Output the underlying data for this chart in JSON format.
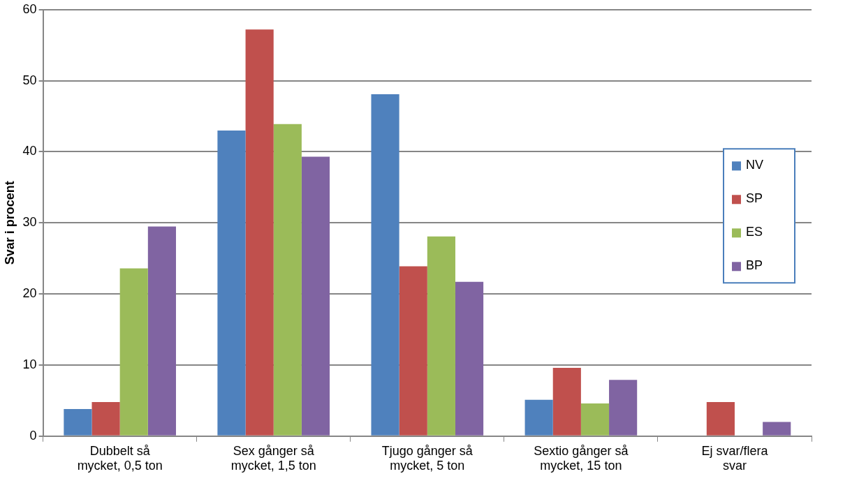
{
  "chart_data": {
    "type": "bar",
    "ylabel": "Svar i procent",
    "categories": [
      "Dubbelt så mycket, 0,5 ton",
      "Sex gånger så mycket, 1,5 ton",
      "Tjugo gånger så mycket, 5 ton",
      "Sextio gånger så mycket, 15 ton",
      "Ej svar/flera svar"
    ],
    "series": [
      {
        "name": "NV",
        "color": "#4f81bd",
        "values": [
          3.8,
          43.0,
          48.1,
          5.1,
          0
        ]
      },
      {
        "name": "SP",
        "color": "#c0504d",
        "values": [
          4.8,
          57.2,
          23.9,
          9.6,
          4.8
        ]
      },
      {
        "name": "ES",
        "color": "#9bbb59",
        "values": [
          23.6,
          43.9,
          28.1,
          4.6,
          0
        ]
      },
      {
        "name": "BP",
        "color": "#8064a2",
        "values": [
          29.5,
          39.3,
          21.7,
          7.9,
          2.0
        ]
      }
    ],
    "ylim": [
      0,
      60
    ],
    "yticks": [
      0,
      10,
      20,
      30,
      40,
      50,
      60
    ],
    "grid": "y",
    "legend": "right"
  }
}
